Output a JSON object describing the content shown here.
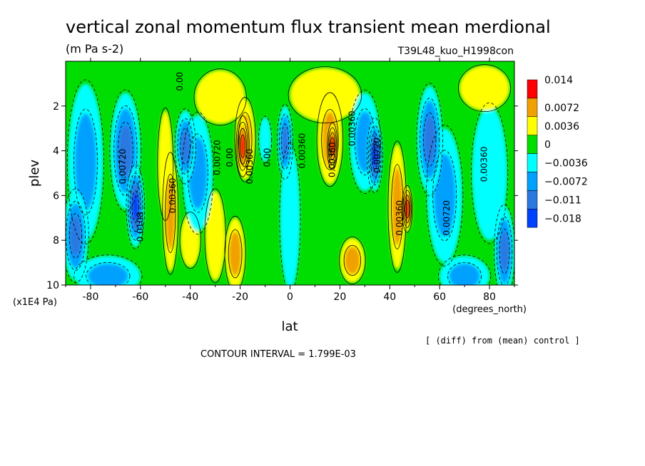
{
  "chart_data": {
    "type": "heatmap",
    "title": "vertical zonal momentum flux transient mean merdional",
    "units": "(m Pa s-2)",
    "run_label": "T39L48_kuo_H1998con",
    "xlabel": "lat",
    "x_units": "(degrees_north)",
    "ylabel": "plev",
    "y_units": "(x1E4 Pa)",
    "note": "[ (diff) from (mean) control ]",
    "contour_interval_text": "CONTOUR INTERVAL = 1.799E-03",
    "xlim": [
      -90,
      90
    ],
    "ylim": [
      10,
      0
    ],
    "x_ticks": [
      -80,
      -60,
      -40,
      -20,
      0,
      20,
      40,
      60,
      80
    ],
    "y_ticks": [
      2,
      4,
      6,
      8,
      10
    ],
    "legend": {
      "labels": [
        "0.014",
        "0.0072",
        "0.0036",
        "0",
        "−0.0036",
        "−0.0072",
        "−0.011",
        "−0.018"
      ],
      "colors": [
        "#ff0000",
        "#f0a000",
        "#ffff00",
        "#00dd00",
        "#00ffff",
        "#00a0ff",
        "#2a78e0",
        "#0040ff"
      ]
    },
    "colors": {
      "red": "#ff0000",
      "orange": "#f0a000",
      "yellow": "#ffff00",
      "green": "#00dd00",
      "cyan": "#00ffff",
      "lightblue": "#00a0ff",
      "midblue": "#2a78e0",
      "blue": "#0040ff"
    },
    "features": [
      {
        "lat": -86,
        "plev": 7.8,
        "value": -0.011,
        "rl": 5,
        "rp": 2.0
      },
      {
        "lat": -82,
        "plev": 4.5,
        "value": -0.0072,
        "rl": 7,
        "rp": 3.5
      },
      {
        "lat": -66,
        "plev": 4.0,
        "value": -0.011,
        "rl": 6,
        "rp": 2.6
      },
      {
        "lat": -62,
        "plev": 6.5,
        "value": -0.018,
        "rl": 3.5,
        "rp": 1.8
      },
      {
        "lat": -73,
        "plev": 9.6,
        "value": -0.0072,
        "rl": 13,
        "rp": 0.9
      },
      {
        "lat": -50,
        "plev": 4.6,
        "value": 0.0036,
        "rl": 3,
        "rp": 2.4
      },
      {
        "lat": -48,
        "plev": 6.8,
        "value": 0.0072,
        "rl": 3,
        "rp": 2.6
      },
      {
        "lat": -42,
        "plev": 3.8,
        "value": -0.011,
        "rl": 4,
        "rp": 1.6
      },
      {
        "lat": -37,
        "plev": 5.0,
        "value": -0.0072,
        "rl": 6,
        "rp": 2.6
      },
      {
        "lat": -40,
        "plev": 8.0,
        "value": 0.0036,
        "rl": 4,
        "rp": 1.2
      },
      {
        "lat": -30,
        "plev": 7.8,
        "value": 0.0036,
        "rl": 4,
        "rp": 2.0
      },
      {
        "lat": -22,
        "plev": 8.6,
        "value": 0.0072,
        "rl": 4,
        "rp": 1.6
      },
      {
        "lat": -19,
        "plev": 3.8,
        "value": 0.014,
        "rl": 2.5,
        "rp": 1.3
      },
      {
        "lat": -18,
        "plev": 3.5,
        "value": 0.0072,
        "rl": 4,
        "rp": 1.8
      },
      {
        "lat": -10,
        "plev": 3.5,
        "value": -0.0036,
        "rl": 2.5,
        "rp": 1.0
      },
      {
        "lat": -2,
        "plev": 3.6,
        "value": -0.011,
        "rl": 3,
        "rp": 1.6
      },
      {
        "lat": 0,
        "plev": 7.0,
        "value": -0.0036,
        "rl": 4,
        "rp": 3.2
      },
      {
        "lat": 16,
        "plev": 3.5,
        "value": 0.0072,
        "rl": 5,
        "rp": 2.0
      },
      {
        "lat": 17,
        "plev": 3.8,
        "value": 0.014,
        "rl": 2,
        "rp": 1.0
      },
      {
        "lat": 25,
        "plev": 8.9,
        "value": 0.0072,
        "rl": 5,
        "rp": 1.0
      },
      {
        "lat": 30,
        "plev": 3.6,
        "value": -0.0072,
        "rl": 6,
        "rp": 2.2
      },
      {
        "lat": 34,
        "plev": 4.2,
        "value": -0.018,
        "rl": 3,
        "rp": 1.6
      },
      {
        "lat": 43,
        "plev": 6.5,
        "value": 0.0072,
        "rl": 3.5,
        "rp": 2.8
      },
      {
        "lat": 47,
        "plev": 6.6,
        "value": 0.014,
        "rl": 2,
        "rp": 1.0
      },
      {
        "lat": 56,
        "plev": 3.5,
        "value": -0.011,
        "rl": 5,
        "rp": 2.4
      },
      {
        "lat": 62,
        "plev": 6.0,
        "value": -0.0072,
        "rl": 7,
        "rp": 3.0
      },
      {
        "lat": 70,
        "plev": 9.6,
        "value": -0.0072,
        "rl": 10,
        "rp": 0.9
      },
      {
        "lat": 80,
        "plev": 5.0,
        "value": -0.0036,
        "rl": 7,
        "rp": 3.0
      },
      {
        "lat": 86,
        "plev": 8.5,
        "value": -0.011,
        "rl": 4,
        "rp": 2.0
      },
      {
        "lat": -28,
        "plev": 1.6,
        "value": 0.0036,
        "rl": 10,
        "rp": 1.2
      },
      {
        "lat": 14,
        "plev": 1.5,
        "value": 0.0036,
        "rl": 14,
        "rp": 1.2
      },
      {
        "lat": 78,
        "plev": 1.2,
        "value": 0.0036,
        "rl": 10,
        "rp": 1.0
      }
    ],
    "contour_labels": [
      {
        "lat": -43,
        "plev": 0.9,
        "text": "0.00"
      },
      {
        "lat": -66,
        "plev": 4.7,
        "text": "0.00720"
      },
      {
        "lat": -59,
        "plev": 7.4,
        "text": "0.0108"
      },
      {
        "lat": -46,
        "plev": 6.0,
        "text": "0.00360"
      },
      {
        "lat": -28,
        "plev": 4.3,
        "text": "0.00720"
      },
      {
        "lat": -23,
        "plev": 4.3,
        "text": "0.00"
      },
      {
        "lat": -15,
        "plev": 4.7,
        "text": "0.00360"
      },
      {
        "lat": -8,
        "plev": 4.3,
        "text": "0.00"
      },
      {
        "lat": 6,
        "plev": 4.0,
        "text": "0.00360"
      },
      {
        "lat": 18,
        "plev": 4.4,
        "text": "0.00360"
      },
      {
        "lat": 26,
        "plev": 3.0,
        "text": "0.00360"
      },
      {
        "lat": 36,
        "plev": 4.2,
        "text": "0.00720"
      },
      {
        "lat": 45,
        "plev": 7.0,
        "text": "0.00360"
      },
      {
        "lat": 64,
        "plev": 7.0,
        "text": "0.00720"
      },
      {
        "lat": 79,
        "plev": 4.6,
        "text": "0.00360"
      }
    ]
  }
}
